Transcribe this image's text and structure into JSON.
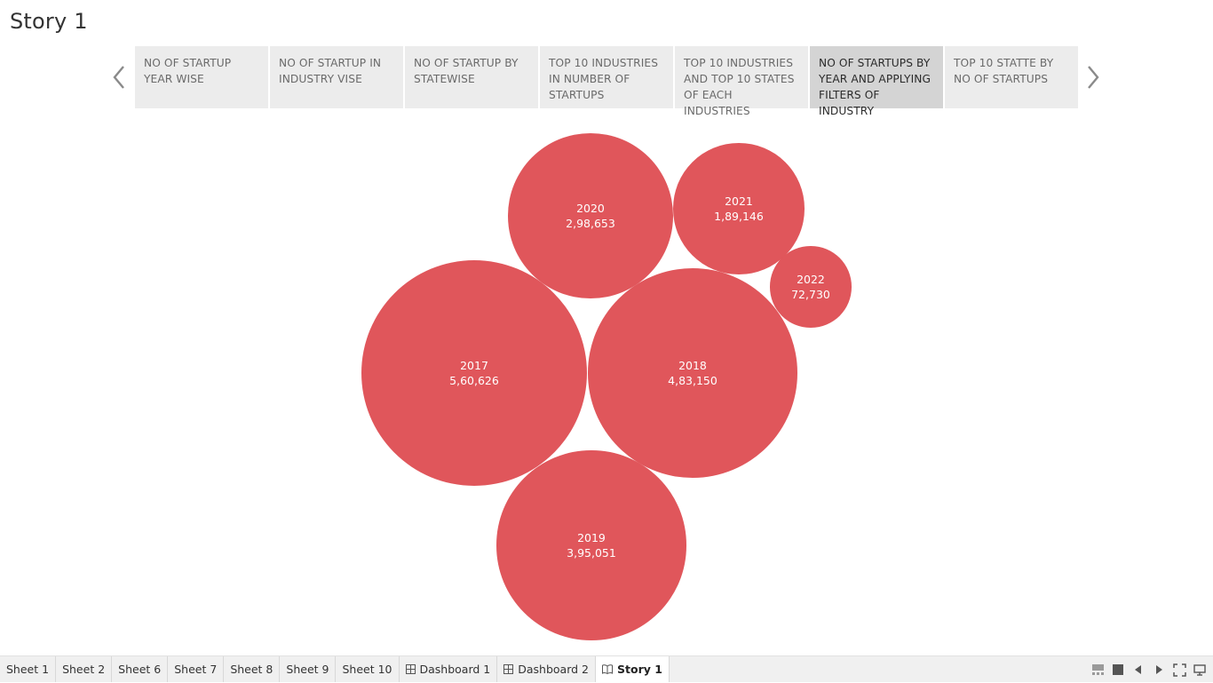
{
  "story": {
    "title": "Story 1"
  },
  "nav": {
    "prev_icon": "chevron-left-icon",
    "next_icon": "chevron-right-icon"
  },
  "story_points": [
    {
      "label": "NO OF STARTUP YEAR WISE",
      "active": false
    },
    {
      "label": "NO OF STARTUP IN INDUSTRY VISE",
      "active": false
    },
    {
      "label": "NO OF STARTUP BY STATEWISE",
      "active": false
    },
    {
      "label": "TOP 10 INDUSTRIES IN NUMBER OF STARTUPS",
      "active": false
    },
    {
      "label": "TOP 10 INDUSTRIES AND TOP 10 STATES OF EACH INDUSTRIES",
      "active": false
    },
    {
      "label": "NO OF STARTUPS BY YEAR AND APPLYING FILTERS OF  INDUSTRY",
      "active": true
    },
    {
      "label": "TOP 10 STATTE BY NO OF STARTUPS",
      "active": false
    }
  ],
  "chart_data": {
    "type": "bubble",
    "color": "#e0565b",
    "points": [
      {
        "category": "2017",
        "value": 560626,
        "label": "5,60,626"
      },
      {
        "category": "2018",
        "value": 483150,
        "label": "4,83,150"
      },
      {
        "category": "2019",
        "value": 395051,
        "label": "3,95,051"
      },
      {
        "category": "2020",
        "value": 298653,
        "label": "2,98,653"
      },
      {
        "category": "2021",
        "value": 189146,
        "label": "1,89,146"
      },
      {
        "category": "2022",
        "value": 72730,
        "label": "72,730"
      }
    ]
  },
  "bottom_tabs": [
    {
      "label": "Sheet 1",
      "icon": "",
      "active": false
    },
    {
      "label": "Sheet 2",
      "icon": "",
      "active": false
    },
    {
      "label": "Sheet 6",
      "icon": "",
      "active": false
    },
    {
      "label": "Sheet 7",
      "icon": "",
      "active": false
    },
    {
      "label": "Sheet 8",
      "icon": "",
      "active": false
    },
    {
      "label": "Sheet 9",
      "icon": "",
      "active": false
    },
    {
      "label": "Sheet 10",
      "icon": "",
      "active": false
    },
    {
      "label": "Dashboard 1",
      "icon": "dashboard-grid-icon",
      "active": false
    },
    {
      "label": "Dashboard 2",
      "icon": "dashboard-grid-icon",
      "active": false
    },
    {
      "label": "Story 1",
      "icon": "story-book-icon",
      "active": true
    }
  ],
  "bottom_controls": [
    "filmstrip-view-icon",
    "single-view-icon",
    "previous-sheet-icon",
    "next-sheet-icon",
    "fullscreen-icon",
    "presentation-mode-icon"
  ]
}
